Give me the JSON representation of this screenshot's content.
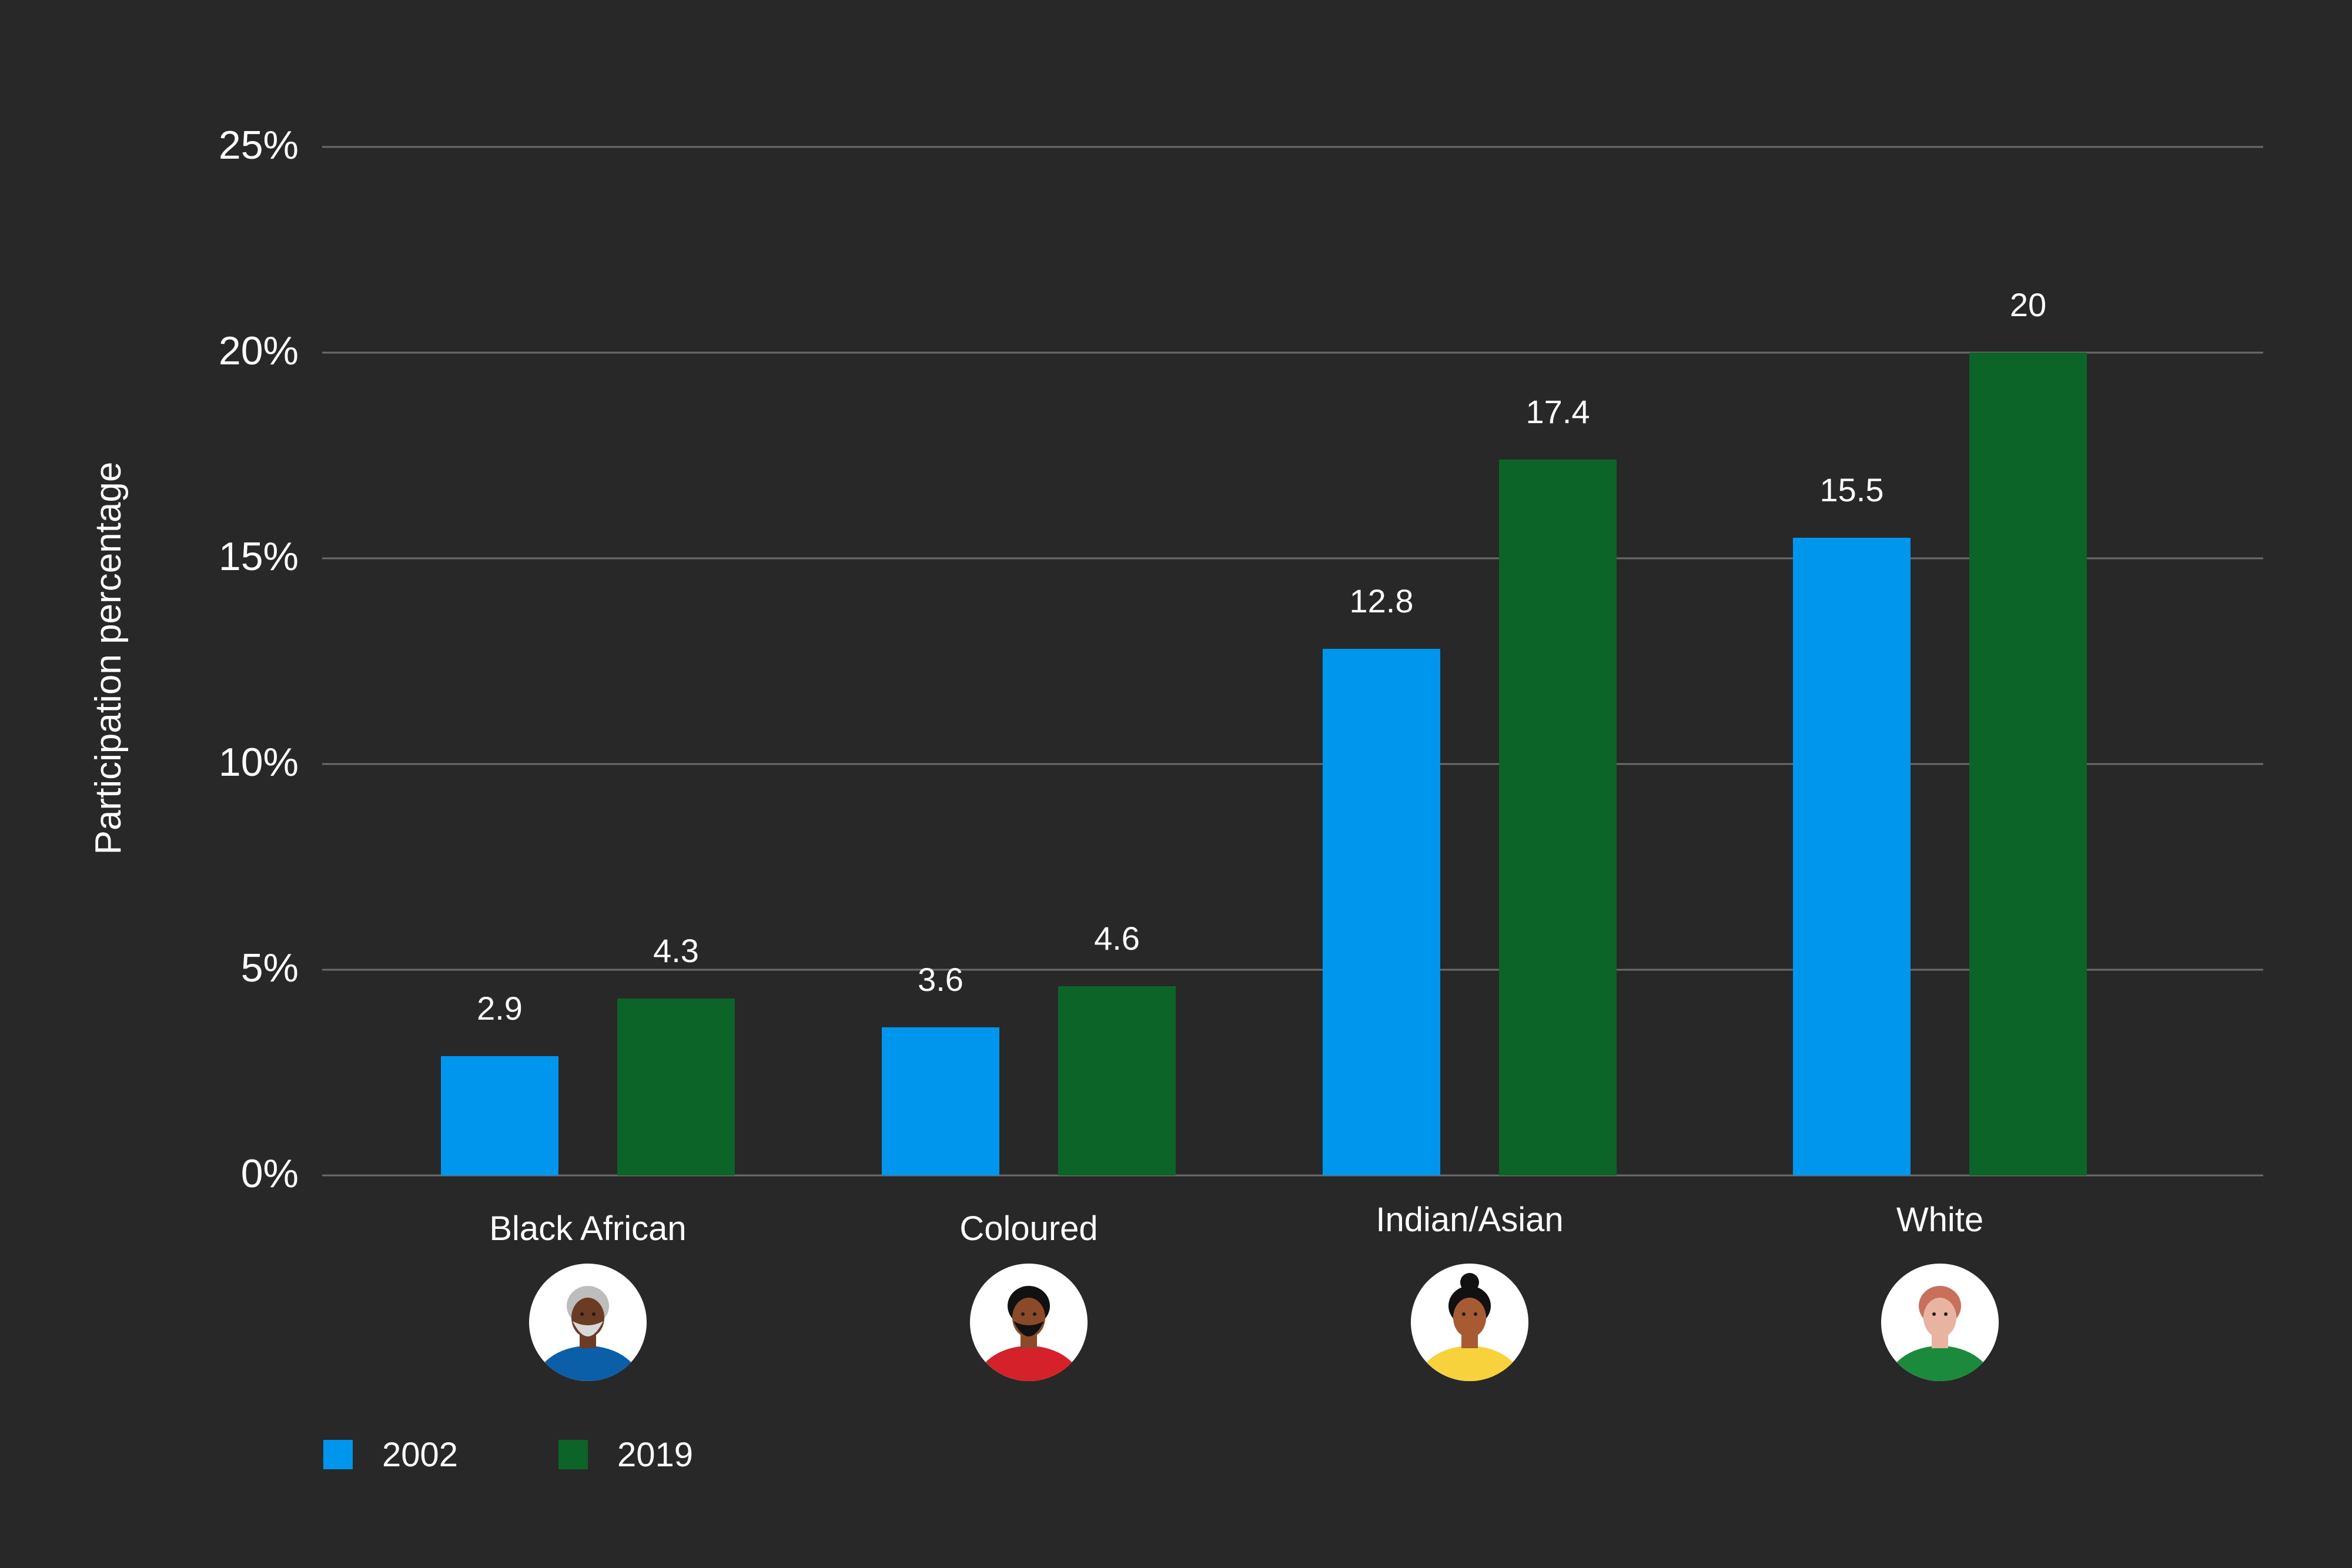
{
  "chart_data": {
    "type": "bar",
    "ylabel": "Participation percentage",
    "xlabel": "",
    "ylim": [
      0,
      25
    ],
    "y_ticks": [
      {
        "value": 0,
        "label": "0%"
      },
      {
        "value": 5,
        "label": "5%"
      },
      {
        "value": 10,
        "label": "10%"
      },
      {
        "value": 15,
        "label": "15%"
      },
      {
        "value": 20,
        "label": "20%"
      },
      {
        "value": 25,
        "label": "25%"
      }
    ],
    "grid": true,
    "legend_position": "bottom-left",
    "categories": [
      "Black African",
      "Coloured",
      "Indian/Asian",
      "White"
    ],
    "series": [
      {
        "name": "2002",
        "color": "#0096ee",
        "values": [
          2.9,
          3.6,
          12.8,
          15.5
        ],
        "labels": [
          "2.9",
          "3.6",
          "12.8",
          "15.5"
        ]
      },
      {
        "name": "2019",
        "color": "#0d6429",
        "values": [
          4.3,
          4.6,
          17.4,
          20
        ],
        "labels": [
          "4.3",
          "4.6",
          "17.4",
          "20"
        ]
      }
    ],
    "category_icons": [
      {
        "name": "black-african-avatar-icon",
        "shirt": "#0b5ea8",
        "skin": "#6b3b24",
        "hair": "#bdbdbd",
        "beard": "#d8d8d8"
      },
      {
        "name": "coloured-avatar-icon",
        "shirt": "#d5222a",
        "skin": "#8a4a2a",
        "hair": "#111111",
        "beard": "#111111"
      },
      {
        "name": "indian-asian-avatar-icon",
        "shirt": "#f7d23c",
        "skin": "#a85a32",
        "hair": "#111111",
        "beard": ""
      },
      {
        "name": "white-avatar-icon",
        "shirt": "#1c8a3c",
        "skin": "#e8b3a0",
        "hair": "#c9705a",
        "beard": ""
      }
    ],
    "colors": {
      "background": "#282828",
      "gridline": "#6b6b6b",
      "text": "#ffffff",
      "icon_circle": "#ffffff"
    }
  }
}
